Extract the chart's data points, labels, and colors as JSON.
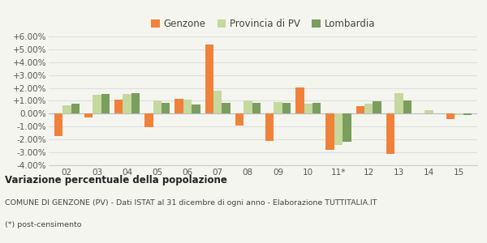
{
  "years": [
    "02",
    "03",
    "04",
    "05",
    "06",
    "07",
    "08",
    "09",
    "10",
    "11*",
    "12",
    "13",
    "14",
    "15"
  ],
  "genzone": [
    -1.75,
    -0.3,
    1.1,
    -1.05,
    1.15,
    5.4,
    -0.9,
    -2.1,
    2.05,
    -2.8,
    0.6,
    -3.1,
    0.0,
    -0.4
  ],
  "provincia": [
    0.65,
    1.5,
    1.55,
    1.0,
    1.1,
    1.8,
    1.0,
    0.9,
    0.75,
    -2.4,
    0.75,
    1.6,
    0.25,
    -0.1
  ],
  "lombardia": [
    0.75,
    1.55,
    1.6,
    0.85,
    0.7,
    0.85,
    0.85,
    0.85,
    0.85,
    -2.2,
    0.95,
    1.0,
    0.0,
    -0.1
  ],
  "genzone_color": "#f0813a",
  "provincia_color": "#c5d89d",
  "lombardia_color": "#7a9e5e",
  "bg_color": "#f5f5f0",
  "grid_color": "#dddddd",
  "title": "Variazione percentuale della popolazione",
  "subtitle": "COMUNE DI GENZONE (PV) - Dati ISTAT al 31 dicembre di ogni anno - Elaborazione TUTTITALIA.IT",
  "footnote": "(*) post-censimento",
  "legend_labels": [
    "Genzone",
    "Provincia di PV",
    "Lombardia"
  ],
  "ylim": [
    -4.0,
    6.0
  ],
  "yticks": [
    -4.0,
    -3.0,
    -2.0,
    -1.0,
    0.0,
    1.0,
    2.0,
    3.0,
    4.0,
    5.0,
    6.0
  ]
}
